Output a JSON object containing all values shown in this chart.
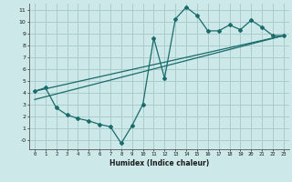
{
  "title": "",
  "xlabel": "Humidex (Indice chaleur)",
  "ylabel": "",
  "bg_color": "#cce8e8",
  "grid_color": "#aacccc",
  "line_color": "#1a6b6b",
  "xlim": [
    -0.5,
    23.5
  ],
  "ylim": [
    -0.8,
    11.5
  ],
  "xticks": [
    0,
    1,
    2,
    3,
    4,
    5,
    6,
    7,
    8,
    9,
    10,
    11,
    12,
    13,
    14,
    15,
    16,
    17,
    18,
    19,
    20,
    21,
    22,
    23
  ],
  "yticks": [
    0,
    1,
    2,
    3,
    4,
    5,
    6,
    7,
    8,
    9,
    10,
    11
  ],
  "ytick_labels": [
    "-0",
    "1",
    "2",
    "3",
    "4",
    "5",
    "6",
    "7",
    "8",
    "9",
    "10",
    "11"
  ],
  "line1_x": [
    0,
    1,
    2,
    3,
    4,
    5,
    6,
    7,
    8,
    9,
    10,
    11,
    12,
    13,
    14,
    15,
    16,
    17,
    18,
    19,
    20,
    21,
    22,
    23
  ],
  "line1_y": [
    4.1,
    4.4,
    2.7,
    2.1,
    1.8,
    1.6,
    1.3,
    1.1,
    -0.3,
    1.2,
    3.0,
    8.6,
    5.2,
    10.2,
    11.2,
    10.5,
    9.2,
    9.2,
    9.7,
    9.3,
    10.1,
    9.5,
    8.8,
    8.8
  ],
  "line2_x": [
    0,
    23
  ],
  "line2_y": [
    4.1,
    8.8
  ],
  "line3_x": [
    0,
    23
  ],
  "line3_y": [
    3.4,
    8.8
  ]
}
